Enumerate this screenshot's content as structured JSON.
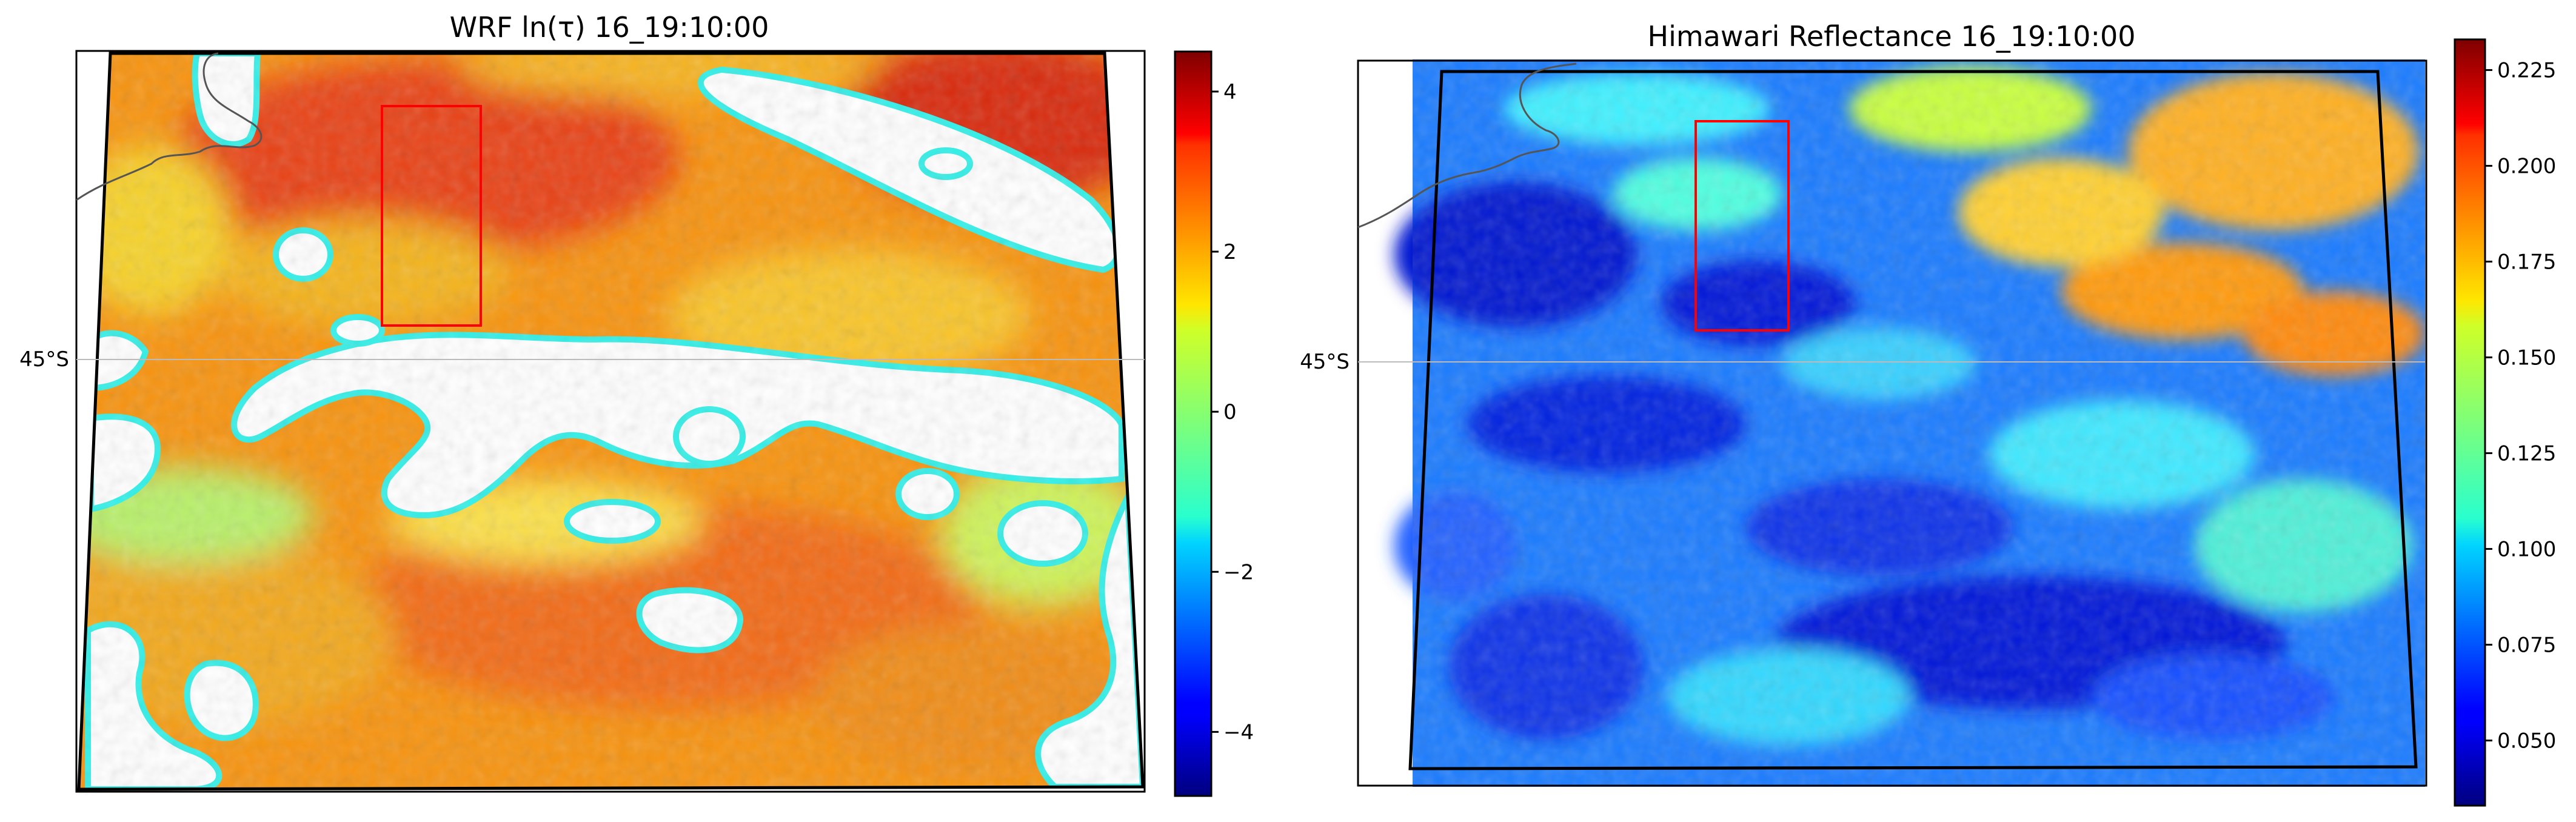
{
  "chart_data": [
    {
      "type": "heatmap",
      "title": "WRF ln(τ) 16_19:10:00",
      "colormap": "jet",
      "colorbar": {
        "range": [
          -4.8,
          4.5
        ],
        "ticks": [
          4,
          2,
          0,
          -2,
          -4
        ],
        "tick_labels": [
          "4",
          "2",
          "0",
          "−2",
          "−4"
        ]
      },
      "lat_label": "45°S",
      "background_color": "#ffffff",
      "missing_color": "#ffffff",
      "dominant_value": 2.8,
      "annotation": "red rectangle",
      "coastline_color": "#555555",
      "gridline_color": "#bbbbbb"
    },
    {
      "type": "heatmap",
      "title": "Himawari Reflectance 16_19:10:00",
      "colormap": "jet",
      "colorbar": {
        "range": [
          0.033,
          0.233
        ],
        "ticks": [
          0.225,
          0.2,
          0.175,
          0.15,
          0.125,
          0.1,
          0.075,
          0.05
        ],
        "tick_labels": [
          "0.225",
          "0.200",
          "0.175",
          "0.150",
          "0.125",
          "0.100",
          "0.075",
          "0.050"
        ]
      },
      "lat_label": "45°S",
      "dominant_value": 0.09,
      "annotation": "red rectangle",
      "coastline_color": "#555555",
      "gridline_color": "#bbbbbb"
    }
  ]
}
